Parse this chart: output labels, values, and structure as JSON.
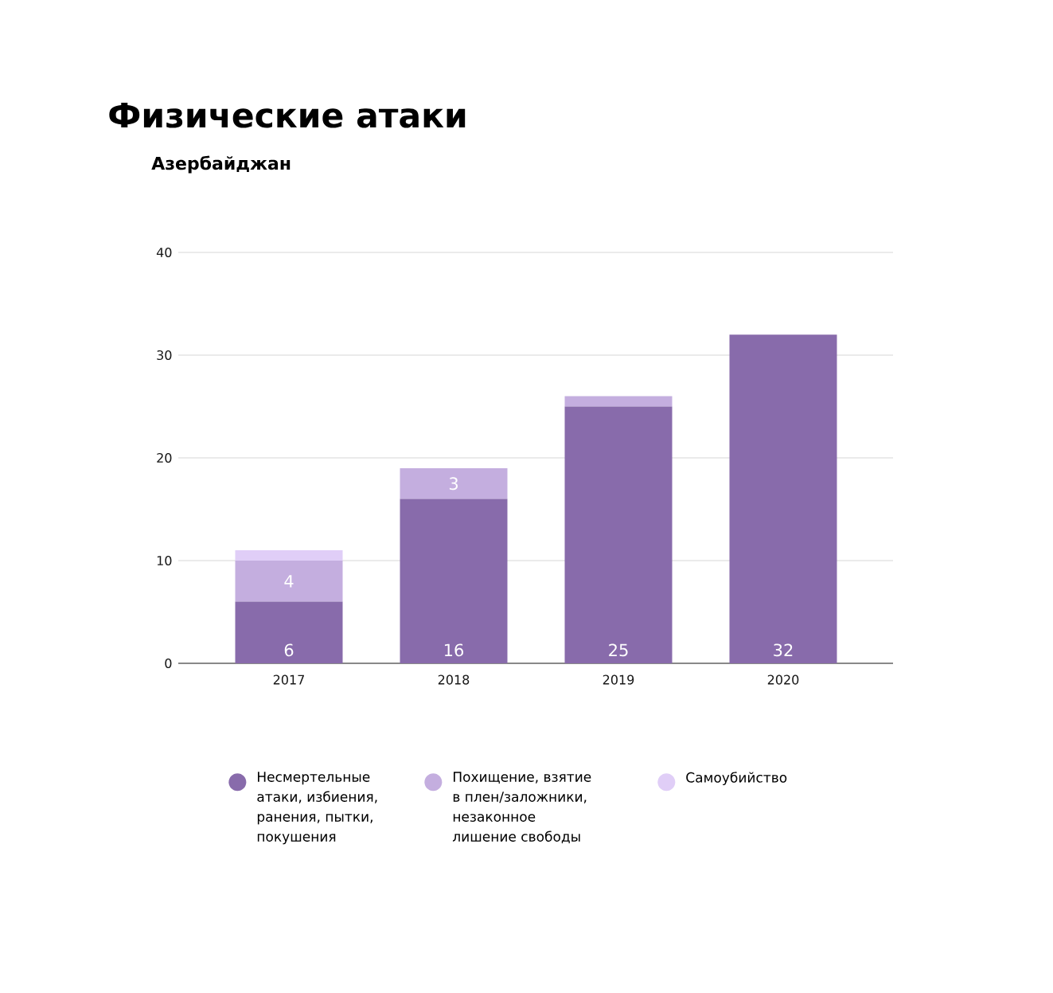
{
  "chart_data": {
    "type": "bar",
    "stacked": true,
    "title": "Физические атаки",
    "subtitle": "Азербайджан",
    "categories": [
      "2017",
      "2018",
      "2019",
      "2020"
    ],
    "series": [
      {
        "name": "Несмертельные атаки, избиения, ранения, пытки, покушения",
        "color": "#886bab",
        "values": [
          6,
          16,
          25,
          32
        ],
        "value_labels": [
          "6",
          "16",
          "25",
          "32"
        ]
      },
      {
        "name": "Похищение, взятие в плен/заложники, незаконное лишение свободы",
        "color": "#c4aedf",
        "values": [
          4,
          3,
          1,
          0
        ],
        "value_labels": [
          "4",
          "3",
          null,
          null
        ]
      },
      {
        "name": "Самоубийство",
        "color": "#e0cef7",
        "values": [
          1,
          0,
          0,
          0
        ]
      }
    ],
    "ylim": [
      0,
      40
    ],
    "yticks": [
      0,
      10,
      20,
      30,
      40
    ],
    "grid": "y",
    "legend": "bottom"
  }
}
